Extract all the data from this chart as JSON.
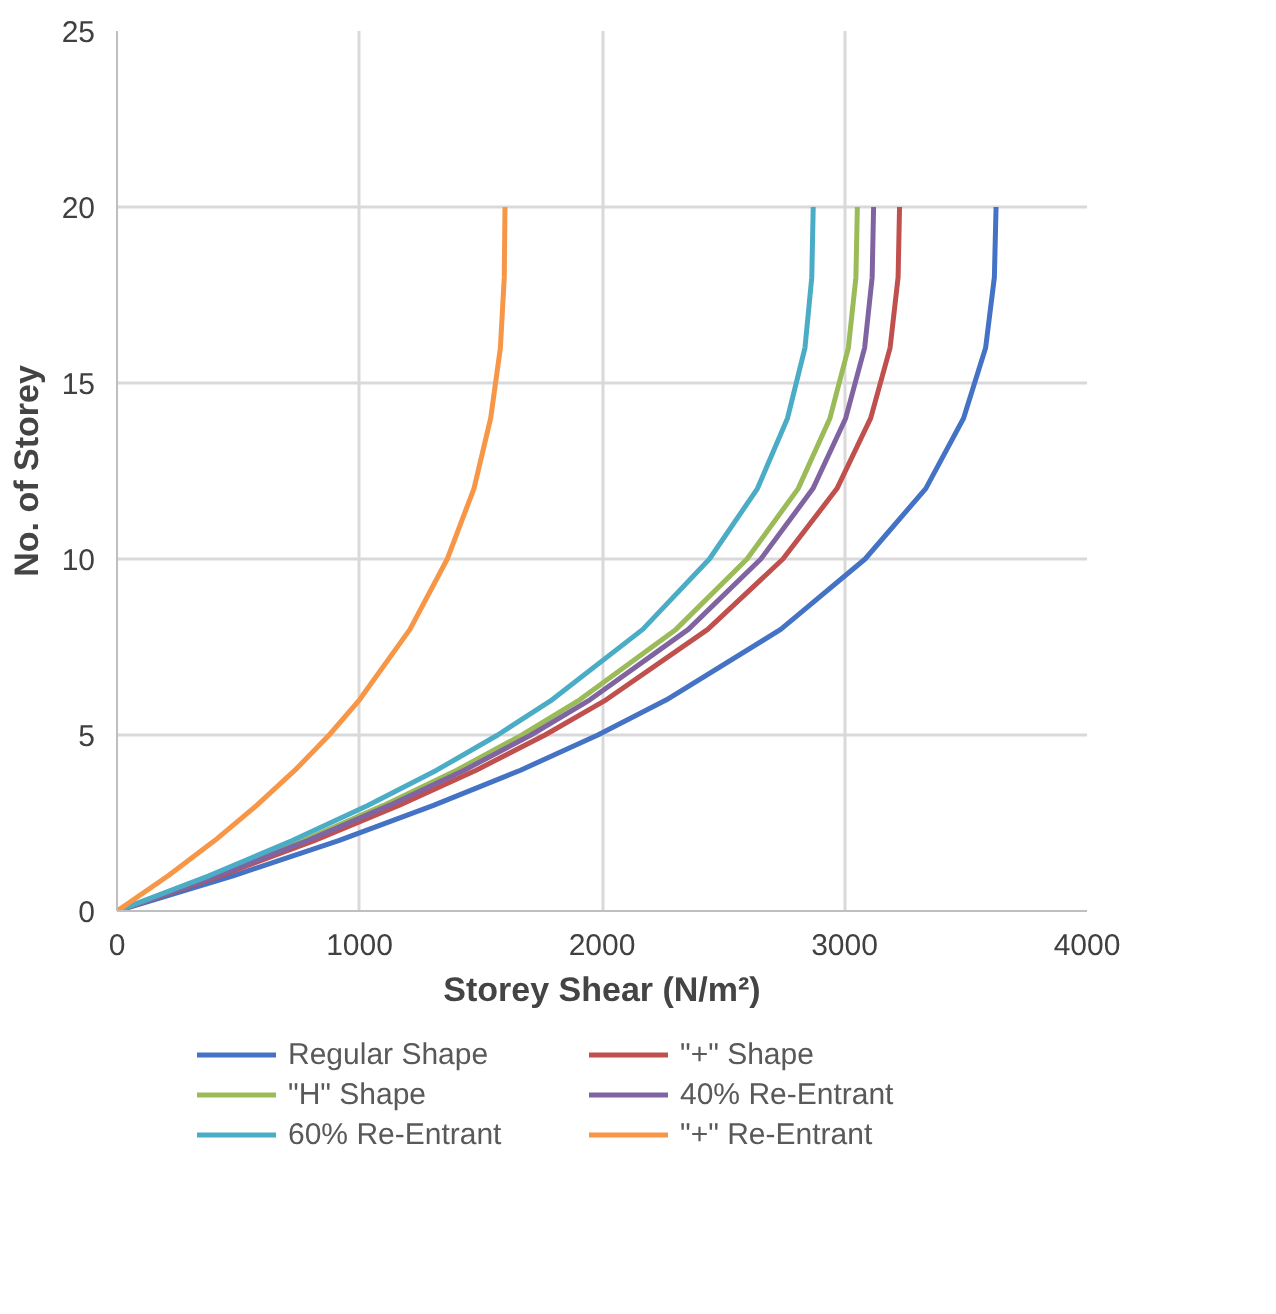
{
  "chart_data": {
    "type": "line",
    "xlabel": "Storey Shear (N/m²)",
    "ylabel": "No. of Storey",
    "xlim": [
      0,
      4000
    ],
    "xticks": [
      0,
      1000,
      2000,
      3000,
      4000
    ],
    "ylim": [
      0,
      25
    ],
    "yticks": [
      0,
      5,
      10,
      15,
      20,
      25
    ],
    "grid": true,
    "legend": "bottom",
    "line_style": "solid",
    "marker": "none",
    "series": [
      {
        "name": "Regular Shape",
        "color": "#4472c4",
        "x": [
          0,
          479,
          914,
          1305,
          1664,
          1983,
          2266,
          2737,
          3085,
          3335,
          3491,
          3582,
          3618,
          3625
        ],
        "values": [
          0,
          1,
          2,
          3,
          4,
          5,
          6,
          8,
          10,
          12,
          14,
          16,
          18,
          20
        ]
      },
      {
        "name": "\"+\" Shape",
        "color": "#c0504d",
        "x": [
          0,
          426,
          813,
          1162,
          1481,
          1765,
          2017,
          2436,
          2746,
          2969,
          3108,
          3188,
          3221,
          3227
        ],
        "values": [
          0,
          1,
          2,
          3,
          4,
          5,
          6,
          8,
          10,
          12,
          14,
          16,
          18,
          20
        ]
      },
      {
        "name": "\"H\" Shape",
        "color": "#9bbb59",
        "x": [
          0,
          403,
          769,
          1099,
          1401,
          1670,
          1908,
          2305,
          2598,
          2809,
          2940,
          3016,
          3047,
          3053
        ],
        "values": [
          0,
          1,
          2,
          3,
          4,
          5,
          6,
          8,
          10,
          12,
          14,
          16,
          18,
          20
        ]
      },
      {
        "name": "40% Re-Entrant",
        "color": "#8064a2",
        "x": [
          0,
          412,
          786,
          1123,
          1432,
          1707,
          1950,
          2356,
          2655,
          2870,
          3005,
          3083,
          3114,
          3120
        ],
        "values": [
          0,
          1,
          2,
          3,
          4,
          5,
          6,
          8,
          10,
          12,
          14,
          16,
          18,
          20
        ]
      },
      {
        "name": "60% Re-Entrant",
        "color": "#4bacc6",
        "x": [
          0,
          379,
          723,
          1034,
          1318,
          1570,
          1794,
          2168,
          2443,
          2641,
          2765,
          2837,
          2865,
          2871
        ],
        "values": [
          0,
          1,
          2,
          3,
          4,
          5,
          6,
          8,
          10,
          12,
          14,
          16,
          18,
          20
        ]
      },
      {
        "name": "\"+\" Re-Entrant",
        "color": "#f79646",
        "x": [
          0,
          211,
          403,
          576,
          734,
          875,
          1000,
          1208,
          1362,
          1472,
          1541,
          1581,
          1597,
          1600
        ],
        "values": [
          0,
          1,
          2,
          3,
          4,
          5,
          6,
          8,
          10,
          12,
          14,
          16,
          18,
          20
        ]
      }
    ]
  }
}
